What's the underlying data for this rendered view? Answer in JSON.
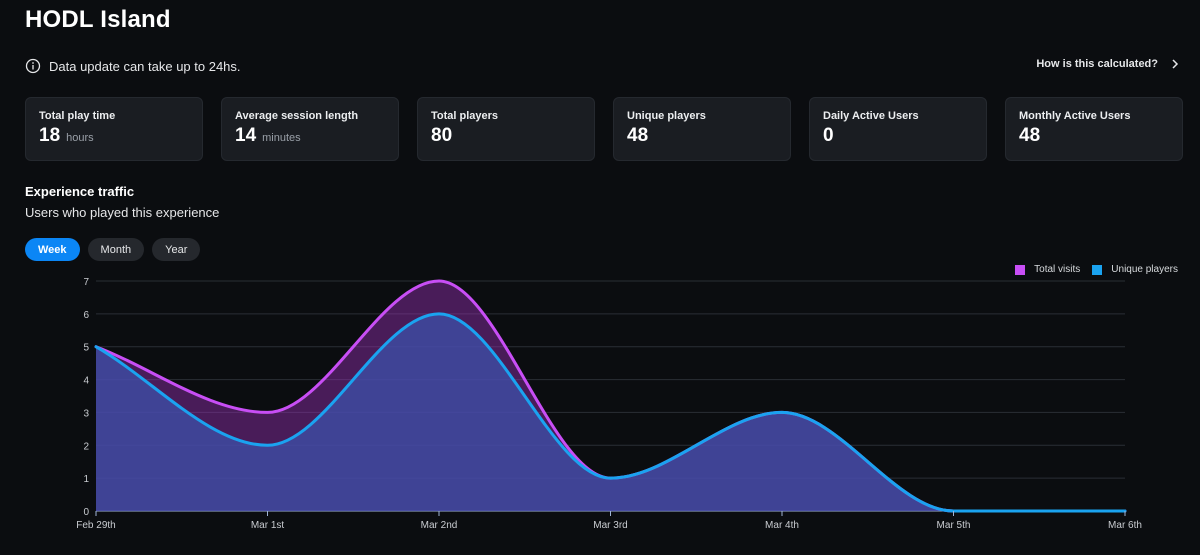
{
  "page": {
    "title": "HODL Island",
    "notice": "Data update can take up to 24hs.",
    "how_link": "How is this calculated?"
  },
  "stats": [
    {
      "label": "Total play time",
      "value": "18",
      "unit": "hours"
    },
    {
      "label": "Average session length",
      "value": "14",
      "unit": "minutes"
    },
    {
      "label": "Total players",
      "value": "80",
      "unit": ""
    },
    {
      "label": "Unique players",
      "value": "48",
      "unit": ""
    },
    {
      "label": "Daily Active Users",
      "value": "0",
      "unit": ""
    },
    {
      "label": "Monthly Active Users",
      "value": "48",
      "unit": ""
    }
  ],
  "section": {
    "title": "Experience traffic",
    "subtitle": "Users who played this experience"
  },
  "tabs": [
    {
      "label": "Week",
      "active": true
    },
    {
      "label": "Month",
      "active": false
    },
    {
      "label": "Year",
      "active": false
    }
  ],
  "colors": {
    "total_visits": "#c84ef5",
    "unique_players": "#1aa3f0",
    "accent": "#0b86f5"
  },
  "icons": {
    "notice": "info-icon",
    "how_link": "chevron-right-icon"
  },
  "chart_data": {
    "type": "area",
    "x": [
      "Feb 29th",
      "Mar 1st",
      "Mar 2nd",
      "Mar 3rd",
      "Mar 4th",
      "Mar 5th",
      "Mar 6th"
    ],
    "series": [
      {
        "name": "Total visits",
        "values": [
          5,
          3,
          7,
          1,
          3,
          0,
          0
        ]
      },
      {
        "name": "Unique players",
        "values": [
          5,
          2,
          6,
          1,
          3,
          0,
          0
        ]
      }
    ],
    "ylim": [
      0,
      7
    ],
    "yticks": [
      0,
      1,
      2,
      3,
      4,
      5,
      6,
      7
    ],
    "grid": true,
    "legend": "top-right"
  }
}
